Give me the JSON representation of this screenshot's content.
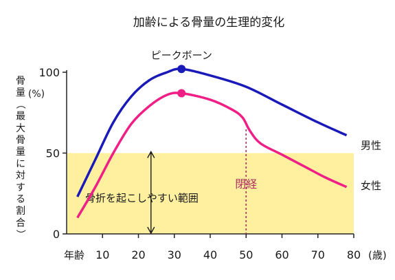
{
  "chart_data": {
    "type": "line",
    "title": "加齢による骨量の生理的変化",
    "ylabel": "骨量（最大骨量に対する割合）",
    "yunit": "(%)",
    "xlabel_left": "年齢",
    "xunit": "(歳)",
    "xlim": [
      0,
      80
    ],
    "ylim": [
      0,
      100
    ],
    "x_ticks": [
      "10",
      "20",
      "30",
      "40",
      "50",
      "60",
      "70",
      "80"
    ],
    "y_ticks": [
      "0",
      "50",
      "100"
    ],
    "series": [
      {
        "name": "男性",
        "color": "#1a1ab8",
        "points": [
          [
            3,
            23
          ],
          [
            8,
            46
          ],
          [
            13,
            69
          ],
          [
            18,
            85
          ],
          [
            23,
            95
          ],
          [
            28,
            100
          ],
          [
            32,
            102
          ],
          [
            40,
            98
          ],
          [
            50,
            91
          ],
          [
            60,
            80
          ],
          [
            70,
            69
          ],
          [
            78,
            61
          ]
        ]
      },
      {
        "name": "女性",
        "color": "#ef1f86",
        "points": [
          [
            3,
            10
          ],
          [
            8,
            29
          ],
          [
            13,
            50
          ],
          [
            18,
            68
          ],
          [
            23,
            79
          ],
          [
            28,
            86
          ],
          [
            32,
            87
          ],
          [
            40,
            83
          ],
          [
            46,
            77
          ],
          [
            49,
            72
          ],
          [
            51,
            64
          ],
          [
            54,
            56
          ],
          [
            60,
            49
          ],
          [
            66,
            42
          ],
          [
            72,
            35
          ],
          [
            78,
            29
          ]
        ]
      }
    ],
    "peak": {
      "label": "ピークボーン",
      "x": 32,
      "values": [
        102,
        87
      ]
    },
    "band": {
      "label": "骨折を起こしやすい範囲",
      "y_from": 0,
      "y_to": 50,
      "color": "#fff0a0"
    },
    "menopause": {
      "label": "閉経",
      "x": 50,
      "color": "#b03060"
    },
    "grid": false
  }
}
